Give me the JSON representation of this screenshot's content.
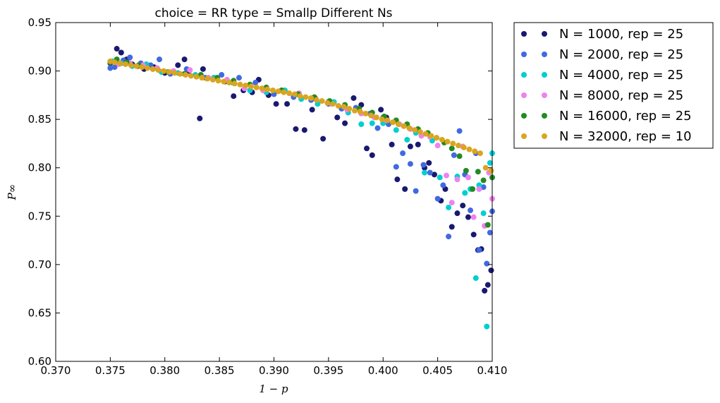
{
  "chart_data": {
    "type": "scatter",
    "title": "choice = RR type = Smallp Different Ns",
    "xlabel": "1 − p",
    "ylabel": "P∞",
    "xlim": [
      0.37,
      0.41
    ],
    "ylim": [
      0.6,
      0.95
    ],
    "xticks": [
      "0.370",
      "0.375",
      "0.380",
      "0.385",
      "0.390",
      "0.395",
      "0.400",
      "0.405",
      "0.410"
    ],
    "yticks": [
      "0.60",
      "0.65",
      "0.70",
      "0.75",
      "0.80",
      "0.85",
      "0.90",
      "0.95"
    ],
    "grid": false,
    "legend_position": "outside-right-top",
    "series": [
      {
        "name": "N = 1000, rep = 25",
        "color": "#191970",
        "x": [
          0.375,
          0.3756,
          0.376,
          0.3765,
          0.377,
          0.3775,
          0.3781,
          0.379,
          0.3797,
          0.38,
          0.3812,
          0.3818,
          0.3822,
          0.3832,
          0.3835,
          0.3845,
          0.3855,
          0.3863,
          0.3872,
          0.388,
          0.3886,
          0.3895,
          0.3902,
          0.3912,
          0.392,
          0.3928,
          0.3935,
          0.3945,
          0.395,
          0.3958,
          0.3965,
          0.3973,
          0.398,
          0.3985,
          0.399,
          0.3998,
          0.4003,
          0.4008,
          0.4013,
          0.402,
          0.4025,
          0.4032,
          0.4038,
          0.4042,
          0.4047,
          0.4053,
          0.4057,
          0.4063,
          0.4068,
          0.4073,
          0.4078,
          0.4083,
          0.4087,
          0.409,
          0.4093,
          0.4096,
          0.4099
        ],
        "y": [
          0.908,
          0.923,
          0.919,
          0.912,
          0.907,
          0.905,
          0.902,
          0.904,
          0.899,
          0.898,
          0.906,
          0.912,
          0.9,
          0.851,
          0.902,
          0.893,
          0.889,
          0.874,
          0.88,
          0.878,
          0.891,
          0.875,
          0.866,
          0.866,
          0.84,
          0.839,
          0.86,
          0.83,
          0.868,
          0.852,
          0.846,
          0.872,
          0.865,
          0.82,
          0.813,
          0.86,
          0.852,
          0.824,
          0.788,
          0.778,
          0.822,
          0.824,
          0.8,
          0.805,
          0.793,
          0.766,
          0.778,
          0.739,
          0.753,
          0.761,
          0.749,
          0.731,
          0.715,
          0.716,
          0.673,
          0.679,
          0.694
        ]
      },
      {
        "name": "N = 2000, rep = 25",
        "color": "#4169e1",
        "x": [
          0.375,
          0.3754,
          0.3762,
          0.3768,
          0.3778,
          0.3787,
          0.3795,
          0.3805,
          0.382,
          0.3837,
          0.3852,
          0.3868,
          0.3883,
          0.39,
          0.3918,
          0.3934,
          0.395,
          0.3962,
          0.3975,
          0.3988,
          0.3995,
          0.4,
          0.4005,
          0.4012,
          0.4018,
          0.4025,
          0.403,
          0.4037,
          0.4043,
          0.405,
          0.4055,
          0.406,
          0.4065,
          0.407,
          0.4075,
          0.408,
          0.4085,
          0.4088,
          0.4092,
          0.4095,
          0.4098,
          0.41
        ],
        "y": [
          0.903,
          0.904,
          0.911,
          0.914,
          0.908,
          0.906,
          0.912,
          0.897,
          0.902,
          0.893,
          0.896,
          0.893,
          0.888,
          0.876,
          0.873,
          0.87,
          0.866,
          0.861,
          0.862,
          0.856,
          0.841,
          0.852,
          0.845,
          0.801,
          0.815,
          0.804,
          0.776,
          0.803,
          0.795,
          0.768,
          0.782,
          0.729,
          0.813,
          0.838,
          0.793,
          0.756,
          0.815,
          0.715,
          0.78,
          0.701,
          0.733,
          0.755
        ]
      },
      {
        "name": "N = 4000, rep = 25",
        "color": "#00ced1",
        "x": [
          0.3752,
          0.376,
          0.377,
          0.3783,
          0.3797,
          0.3812,
          0.3828,
          0.3845,
          0.3862,
          0.3878,
          0.3893,
          0.391,
          0.3925,
          0.394,
          0.3955,
          0.3968,
          0.398,
          0.399,
          0.4,
          0.4012,
          0.4022,
          0.403,
          0.4038,
          0.4045,
          0.4052,
          0.406,
          0.4068,
          0.4075,
          0.408,
          0.4085,
          0.4088,
          0.4092,
          0.4095,
          0.4098,
          0.41
        ],
        "y": [
          0.91,
          0.908,
          0.905,
          0.907,
          0.899,
          0.898,
          0.896,
          0.893,
          0.888,
          0.88,
          0.878,
          0.88,
          0.871,
          0.866,
          0.868,
          0.857,
          0.845,
          0.846,
          0.846,
          0.839,
          0.829,
          0.836,
          0.795,
          0.828,
          0.79,
          0.759,
          0.791,
          0.774,
          0.778,
          0.686,
          0.782,
          0.753,
          0.636,
          0.805,
          0.815
        ]
      },
      {
        "name": "N = 8000, rep = 25",
        "color": "#ee82ee",
        "x": [
          0.375,
          0.3758,
          0.3768,
          0.378,
          0.3793,
          0.3808,
          0.3823,
          0.384,
          0.3857,
          0.3873,
          0.389,
          0.3907,
          0.3923,
          0.3938,
          0.3953,
          0.3967,
          0.398,
          0.3992,
          0.4003,
          0.4015,
          0.4025,
          0.4035,
          0.4043,
          0.405,
          0.4058,
          0.4063,
          0.4068,
          0.4073,
          0.4078,
          0.4083,
          0.4088,
          0.4093,
          0.4097,
          0.41
        ],
        "y": [
          0.909,
          0.907,
          0.908,
          0.906,
          0.903,
          0.9,
          0.901,
          0.893,
          0.891,
          0.882,
          0.88,
          0.88,
          0.877,
          0.872,
          0.866,
          0.86,
          0.856,
          0.852,
          0.849,
          0.845,
          0.84,
          0.833,
          0.832,
          0.823,
          0.792,
          0.764,
          0.788,
          0.822,
          0.79,
          0.749,
          0.778,
          0.74,
          0.795,
          0.768
        ]
      },
      {
        "name": "N = 16000, rep = 25",
        "color": "#228b22",
        "x": [
          0.375,
          0.3756,
          0.3765,
          0.3776,
          0.3789,
          0.3803,
          0.3818,
          0.3833,
          0.3848,
          0.3863,
          0.3878,
          0.3893,
          0.3907,
          0.3922,
          0.3937,
          0.3951,
          0.3965,
          0.3978,
          0.399,
          0.4001,
          0.4012,
          0.4022,
          0.4032,
          0.4041,
          0.4049,
          0.4056,
          0.4063,
          0.407,
          0.4076,
          0.4082,
          0.4087,
          0.4092,
          0.4096,
          0.41
        ],
        "y": [
          0.909,
          0.912,
          0.909,
          0.906,
          0.902,
          0.899,
          0.897,
          0.896,
          0.893,
          0.89,
          0.886,
          0.883,
          0.88,
          0.876,
          0.873,
          0.869,
          0.865,
          0.861,
          0.857,
          0.853,
          0.849,
          0.845,
          0.84,
          0.836,
          0.831,
          0.826,
          0.82,
          0.812,
          0.797,
          0.778,
          0.796,
          0.787,
          0.741,
          0.79
        ]
      },
      {
        "name": "N = 32000, rep = 10",
        "color": "#daa520",
        "x": [
          0.375,
          0.3754,
          0.3759,
          0.3764,
          0.3769,
          0.3774,
          0.3779,
          0.3784,
          0.3789,
          0.3794,
          0.3799,
          0.3804,
          0.3809,
          0.3814,
          0.3819,
          0.3824,
          0.3829,
          0.3834,
          0.3839,
          0.3844,
          0.3849,
          0.3854,
          0.3859,
          0.3864,
          0.3869,
          0.3874,
          0.3879,
          0.3884,
          0.3889,
          0.3894,
          0.3899,
          0.3904,
          0.3909,
          0.3914,
          0.3919,
          0.3924,
          0.3929,
          0.3934,
          0.3939,
          0.3944,
          0.3949,
          0.3954,
          0.3959,
          0.3964,
          0.3969,
          0.3974,
          0.3979,
          0.3984,
          0.3989,
          0.3994,
          0.3999,
          0.4004,
          0.4009,
          0.4014,
          0.4019,
          0.4024,
          0.4029,
          0.4034,
          0.4039,
          0.4044,
          0.4049,
          0.4054,
          0.4059,
          0.4064,
          0.4069,
          0.4074,
          0.4079,
          0.4084,
          0.4089,
          0.4094,
          0.4099
        ],
        "y": [
          0.91,
          0.909,
          0.908,
          0.907,
          0.906,
          0.905,
          0.904,
          0.903,
          0.902,
          0.901,
          0.9,
          0.899,
          0.898,
          0.897,
          0.896,
          0.895,
          0.894,
          0.893,
          0.892,
          0.891,
          0.89,
          0.889,
          0.888,
          0.887,
          0.886,
          0.885,
          0.884,
          0.883,
          0.882,
          0.881,
          0.88,
          0.879,
          0.878,
          0.877,
          0.876,
          0.874,
          0.873,
          0.872,
          0.87,
          0.869,
          0.867,
          0.866,
          0.864,
          0.863,
          0.861,
          0.859,
          0.858,
          0.856,
          0.854,
          0.852,
          0.85,
          0.849,
          0.847,
          0.845,
          0.843,
          0.841,
          0.839,
          0.837,
          0.835,
          0.833,
          0.831,
          0.829,
          0.827,
          0.825,
          0.823,
          0.821,
          0.819,
          0.817,
          0.815,
          0.8,
          0.797
        ]
      }
    ]
  }
}
